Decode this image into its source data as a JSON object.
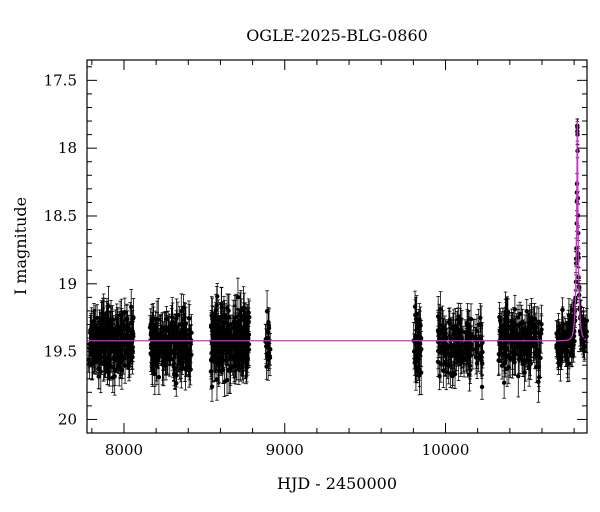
{
  "chart_data": {
    "type": "scatter",
    "title": "OGLE-2025-BLG-0860",
    "xlabel": "HJD - 2450000",
    "ylabel": "I magnitude",
    "xlim": [
      7770,
      10880
    ],
    "ylim": [
      20.1,
      17.35
    ],
    "y_inverted": true,
    "x_ticks": [
      8000,
      9000,
      10000
    ],
    "y_ticks": [
      17.5,
      18,
      18.5,
      19,
      19.5,
      20
    ],
    "x_tick_labels": [
      "8000",
      "9000",
      "10000"
    ],
    "y_tick_labels": [
      "17.5",
      "18",
      "18.5",
      "19",
      "19.5",
      "20"
    ],
    "baseline_mag": 19.42,
    "point_color": "#000000",
    "model_color": "#cc33cc",
    "series": [
      {
        "type": "errorbar-points",
        "seasons": [
          {
            "x_start": 7780,
            "x_end": 8060,
            "mean_mag": 19.42,
            "scatter": 0.11,
            "error": 0.12,
            "count": 260
          },
          {
            "x_start": 8160,
            "x_end": 8420,
            "mean_mag": 19.44,
            "scatter": 0.11,
            "error": 0.12,
            "count": 200
          },
          {
            "x_start": 8540,
            "x_end": 8780,
            "mean_mag": 19.42,
            "scatter": 0.12,
            "error": 0.13,
            "count": 240
          },
          {
            "x_start": 8880,
            "x_end": 8910,
            "mean_mag": 19.42,
            "scatter": 0.1,
            "error": 0.12,
            "count": 20
          },
          {
            "x_start": 9800,
            "x_end": 9850,
            "mean_mag": 19.45,
            "scatter": 0.13,
            "error": 0.13,
            "count": 40
          },
          {
            "x_start": 9950,
            "x_end": 10230,
            "mean_mag": 19.43,
            "scatter": 0.11,
            "error": 0.12,
            "count": 160
          },
          {
            "x_start": 10330,
            "x_end": 10600,
            "mean_mag": 19.42,
            "scatter": 0.11,
            "error": 0.12,
            "count": 170
          },
          {
            "x_start": 10690,
            "x_end": 10880,
            "mean_mag": 19.42,
            "scatter": 0.08,
            "error": 0.1,
            "count": 160
          }
        ]
      },
      {
        "type": "model-curve",
        "peak_x": 10820,
        "peak_mag": 17.8,
        "tE": 16,
        "u0": 0.09
      }
    ]
  }
}
